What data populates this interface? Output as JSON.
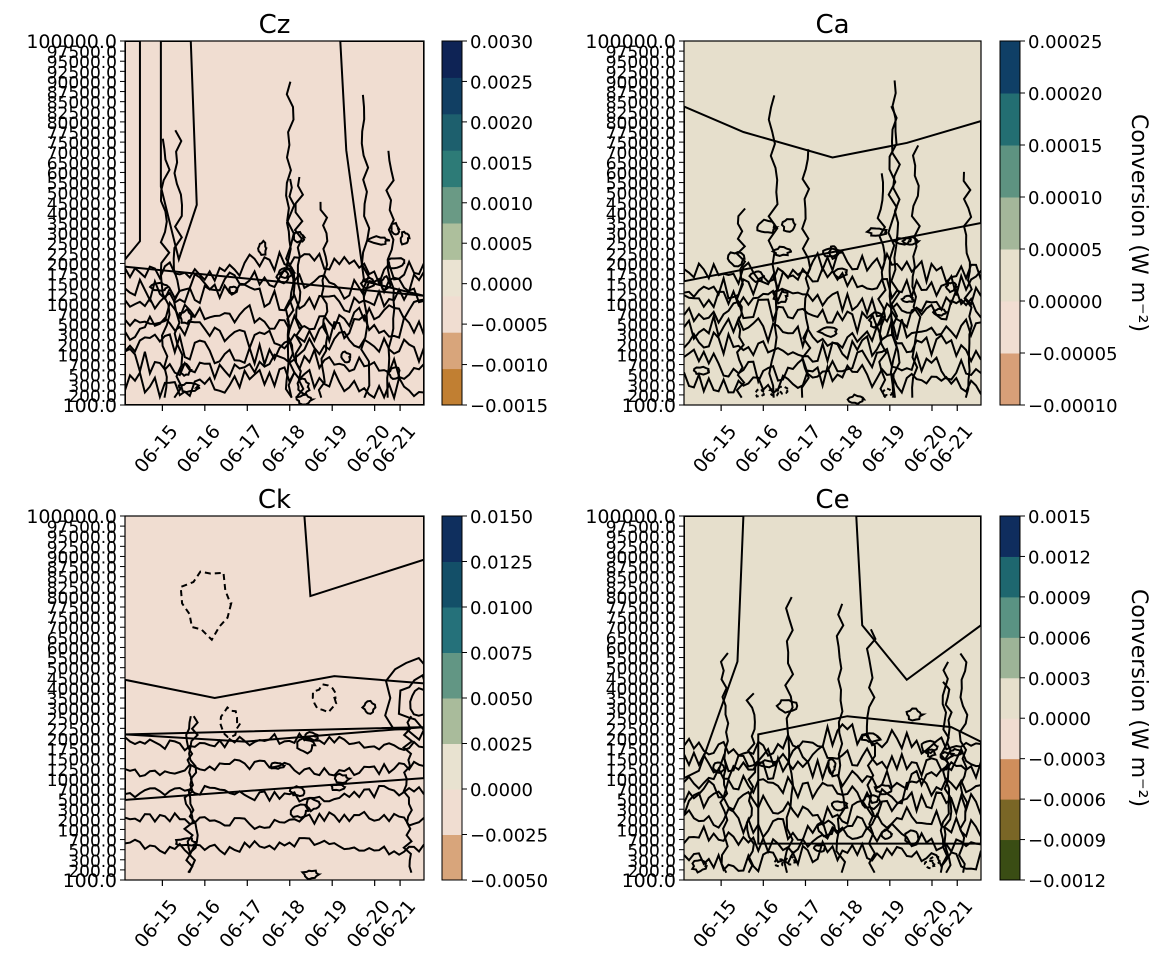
{
  "figure": {
    "x_ticks": [
      "06-15",
      "06-16",
      "06-17",
      "06-18",
      "06-19",
      "06-20",
      "06-21"
    ],
    "y_tick_labels": [
      "100000.0",
      "97500.0",
      "95000.0",
      "92500.0",
      "90000.0",
      "87500.0",
      "85000.0",
      "82500.0",
      "80000.0",
      "77500.0",
      "75000.0",
      "70000.0",
      "65000.0",
      "60000.0",
      "55000.0",
      "50000.0",
      "45000.0",
      "40000.0",
      "35000.0",
      "30000.0",
      "25000.0",
      "22500.0",
      "20000.0",
      "17500.0",
      "15000.0",
      "12500.0",
      "10000.0",
      "7000.0",
      "5000.0",
      "3000.0",
      "2000.0",
      "1000.0",
      "700.0",
      "500.0",
      "300.0",
      "200.0",
      "100.0"
    ],
    "y_tick_labels_legible": [
      "100000.0",
      "100.0"
    ],
    "colorbar_label": "Conversion  (W m⁻²)"
  },
  "chart_data": [
    {
      "type": "heatmap",
      "subtype": "filled contour",
      "title": "Cz",
      "x_ticks": [
        "06-15",
        "06-16",
        "06-17",
        "06-18",
        "06-19",
        "06-20",
        "06-21"
      ],
      "y_axis": "pressure, inverted (100000.0 at top, 100.0 at bottom)",
      "colorbar_ticks": [
        "0.0030",
        "0.0025",
        "0.0020",
        "0.0015",
        "0.0010",
        "0.0005",
        "0.0000",
        "−0.0005",
        "−0.0010",
        "−0.0015"
      ],
      "levels": [
        -0.0015,
        -0.001,
        -0.0005,
        0.0,
        0.0005,
        0.001,
        0.0015,
        0.002,
        0.0025,
        0.003
      ],
      "colors": [
        "#c17f32",
        "#d8a57b",
        "#f0ddd1",
        "#eae3d2",
        "#adbf9c",
        "#6a9a85",
        "#2d7b77",
        "#1d5f6d",
        "#113f63",
        "#0e2355"
      ]
    },
    {
      "type": "heatmap",
      "subtype": "filled contour",
      "title": "Ca",
      "x_ticks": [
        "06-15",
        "06-16",
        "06-17",
        "06-18",
        "06-19",
        "06-20",
        "06-21"
      ],
      "y_axis": "pressure, inverted (100000.0 at top, 100.0 at bottom)",
      "colorbar_ticks": [
        "0.00025",
        "0.00020",
        "0.00015",
        "0.00010",
        "0.00005",
        "0.00000",
        "−0.00005",
        "−0.00010"
      ],
      "colorbar_label": "Conversion  (W m⁻²)",
      "levels": [
        -0.0001,
        -5e-05,
        0.0,
        5e-05,
        0.0001,
        0.00015,
        0.0002,
        0.00025
      ],
      "colors": [
        "#d89f78",
        "#f1ded2",
        "#e6dfcc",
        "#a4b79a",
        "#5e9381",
        "#236e72",
        "#0f3f66"
      ]
    },
    {
      "type": "heatmap",
      "subtype": "filled contour",
      "title": "Ck",
      "x_ticks": [
        "06-15",
        "06-16",
        "06-17",
        "06-18",
        "06-19",
        "06-20",
        "06-21"
      ],
      "y_axis": "pressure, inverted (100000.0 at top, 100.0 at bottom)",
      "colorbar_ticks": [
        "0.0150",
        "0.0125",
        "0.0100",
        "0.0075",
        "0.0050",
        "0.0025",
        "0.0000",
        "−0.0025",
        "−0.0050"
      ],
      "levels": [
        -0.005,
        -0.0025,
        0.0,
        0.0025,
        0.005,
        0.0075,
        0.01,
        0.0125,
        0.015
      ],
      "colors": [
        "#d8a57b",
        "#f0ddd1",
        "#e8e2d0",
        "#a9bb9b",
        "#629684",
        "#25717a",
        "#134f68",
        "#0f2f5e"
      ]
    },
    {
      "type": "heatmap",
      "subtype": "filled contour",
      "title": "Ce",
      "x_ticks": [
        "06-15",
        "06-16",
        "06-17",
        "06-18",
        "06-19",
        "06-20",
        "06-21"
      ],
      "y_axis": "pressure, inverted (100000.0 at top, 100.0 at bottom)",
      "colorbar_ticks": [
        "0.0015",
        "0.0012",
        "0.0009",
        "0.0006",
        "0.0003",
        "0.0000",
        "−0.0003",
        "−0.0006",
        "−0.0009",
        "−0.0012"
      ],
      "colorbar_label": "Conversion  (W m⁻²)",
      "levels": [
        -0.0012,
        -0.0009,
        -0.0006,
        -0.0003,
        0.0,
        0.0003,
        0.0006,
        0.0009,
        0.0012,
        0.0015
      ],
      "colors": [
        "#3a4d14",
        "#7a6626",
        "#cf8e5c",
        "#f0ddd1",
        "#e6dfcc",
        "#9db497",
        "#5a9383",
        "#1e676f",
        "#0f2d5e"
      ]
    }
  ]
}
